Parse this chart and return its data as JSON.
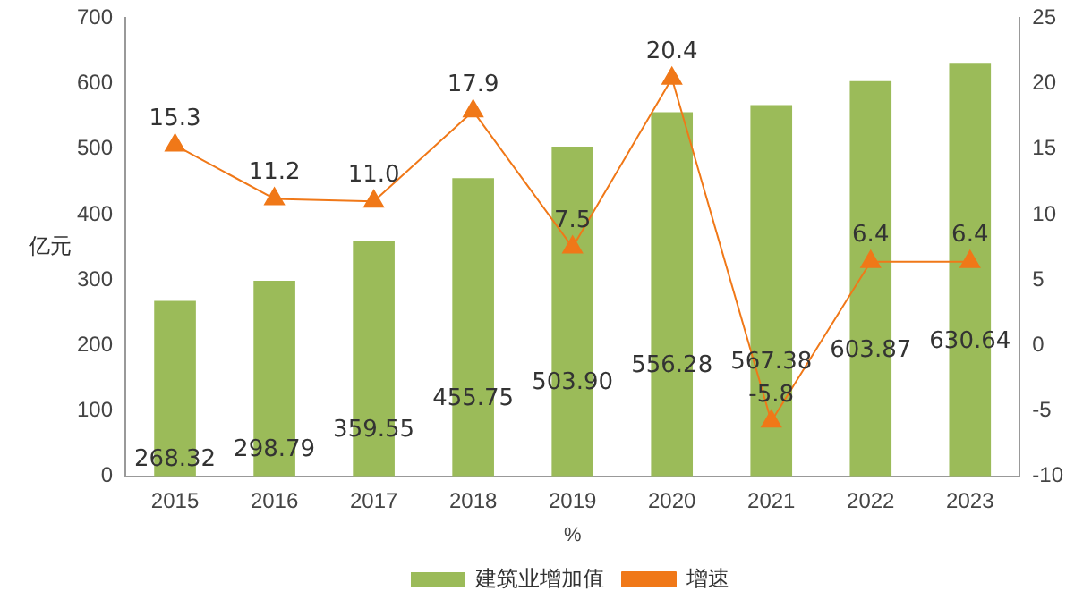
{
  "chart_data": {
    "type": "bar",
    "categories": [
      "2015",
      "2016",
      "2017",
      "2018",
      "2019",
      "2020",
      "2021",
      "2022",
      "2023"
    ],
    "series": [
      {
        "name": "建筑业增加值",
        "color": "#9bbb59",
        "values": [
          268.32,
          298.79,
          359.55,
          455.75,
          503.9,
          556.28,
          567.38,
          603.87,
          630.64
        ],
        "value_labels": [
          "268.32",
          "298.79",
          "359.55",
          "455.75",
          "503.90",
          "556.28",
          "567.38",
          "603.87",
          "630.64"
        ]
      },
      {
        "name": "增速",
        "type": "line",
        "axis": "y2",
        "color": "#f07818",
        "marker": "triangle",
        "line_style": "solid",
        "values": [
          15.3,
          11.2,
          11.0,
          17.9,
          7.5,
          20.4,
          -5.8,
          6.4,
          6.4
        ],
        "value_labels": [
          "15.3",
          "11.2",
          "11.0",
          "17.9",
          "7.5",
          "20.4",
          "-5.8",
          "6.4",
          "6.4"
        ]
      }
    ],
    "ylabel": "亿元",
    "xlabel": "%",
    "ylim": [
      0,
      700
    ],
    "yticks": [
      0,
      100,
      200,
      300,
      400,
      500,
      600,
      700
    ],
    "y2lim": [
      -10,
      25
    ],
    "y2ticks": [
      -10,
      -5,
      0,
      5,
      10,
      15,
      20,
      25
    ],
    "grid": false,
    "legend": "bottom"
  }
}
